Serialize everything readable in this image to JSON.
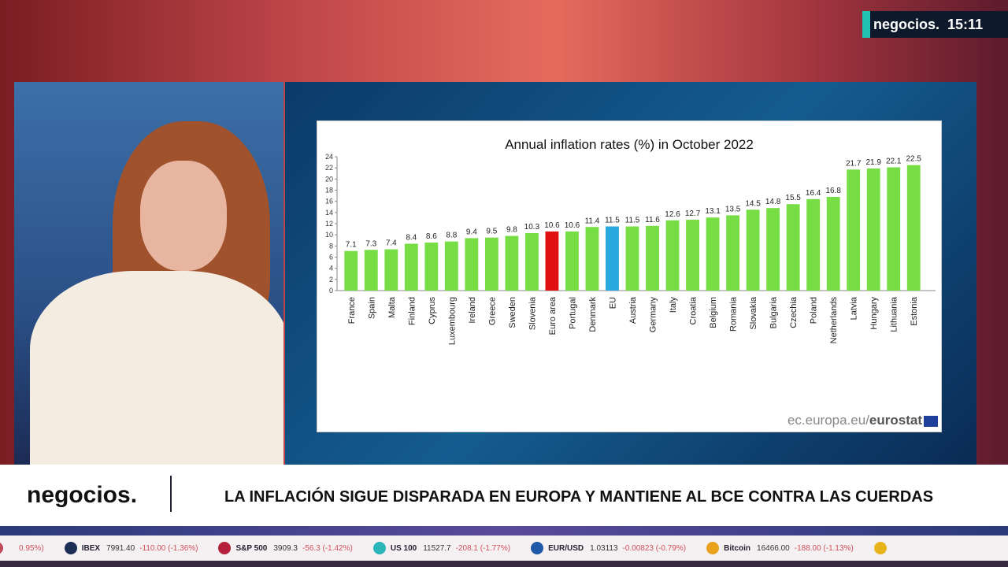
{
  "channel": {
    "logo": "negocios.",
    "time": "15:11"
  },
  "lower_third": {
    "logo": "negocios.",
    "headline": "LA INFLACIÓN SIGUE DISPARADA EN EUROPA Y MANTIENE AL BCE CONTRA LAS CUERDAS"
  },
  "ticker": [
    {
      "name": "",
      "value": "",
      "change": "0.95%)",
      "color": "#c04a55"
    },
    {
      "name": "IBEX",
      "value": "7991.40",
      "change": "-110.00 (-1.36%)",
      "color": "#1d2e55"
    },
    {
      "name": "S&P 500",
      "value": "3909.3",
      "change": "-56.3 (-1.42%)",
      "color": "#b5203a"
    },
    {
      "name": "US 100",
      "value": "11527.7",
      "change": "-208.1 (-1.77%)",
      "color": "#2bb5b8"
    },
    {
      "name": "EUR/USD",
      "value": "1.03113",
      "change": "-0.00823 (-0.79%)",
      "color": "#1e5aa8"
    },
    {
      "name": "Bitcoin",
      "value": "16466.00",
      "change": "-188.00 (-1.13%)",
      "color": "#e8a21e"
    },
    {
      "name": "",
      "value": "",
      "change": "",
      "color": "#e8b41e"
    }
  ],
  "source": {
    "prefix": "ec.europa.eu/",
    "brand": "eurostat"
  },
  "chart_data": {
    "type": "bar",
    "title": "Annual inflation rates (%) in October 2022",
    "categories": [
      "France",
      "Spain",
      "Malta",
      "Finland",
      "Cyprus",
      "Luxembourg",
      "Ireland",
      "Greece",
      "Sweden",
      "Slovenia",
      "Euro area",
      "Portugal",
      "Denmark",
      "EU",
      "Austria",
      "Germany",
      "Italy",
      "Croatia",
      "Belgium",
      "Romania",
      "Slovakia",
      "Bulgaria",
      "Czechia",
      "Poland",
      "Netherlands",
      "Latvia",
      "Hungary",
      "Lithuania",
      "Estonia"
    ],
    "values": [
      7.1,
      7.3,
      7.4,
      8.4,
      8.6,
      8.8,
      9.4,
      9.5,
      9.8,
      10.3,
      10.6,
      10.6,
      11.4,
      11.5,
      11.5,
      11.6,
      12.6,
      12.7,
      13.1,
      13.5,
      14.5,
      14.8,
      15.5,
      16.4,
      16.8,
      21.7,
      21.9,
      22.1,
      22.5
    ],
    "value_labels": [
      "7.1",
      "7.3",
      "7.4",
      "8.4",
      "8.6",
      "8.8",
      "9.4",
      "9.5",
      "9.8",
      "10.3",
      "10.6",
      "10.6",
      "11.4",
      "11.5",
      "11.5",
      "11.6",
      "12.6",
      "12.7",
      "13.1",
      "13.5",
      "14.5",
      "14.8",
      "15.5",
      "16.4",
      "16.8",
      "21.7",
      "21.9",
      "22.1",
      "22.5"
    ],
    "highlight": {
      "Euro area": "#e01010",
      "EU": "#29a8e0"
    },
    "bar_color": "#77dd44",
    "ylim": [
      0,
      24
    ],
    "yticks": [
      0,
      2,
      4,
      6,
      8,
      10,
      12,
      14,
      16,
      18,
      20,
      22,
      24
    ],
    "grid": false
  }
}
